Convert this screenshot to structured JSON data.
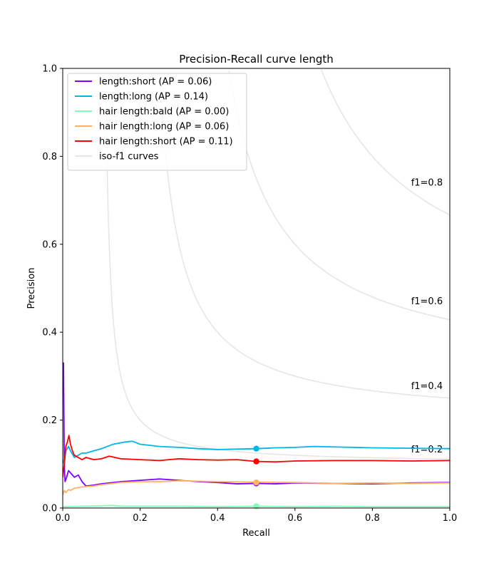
{
  "chart_data": {
    "type": "line",
    "title": "Precision-Recall curve length",
    "xlabel": "Recall",
    "ylabel": "Precision",
    "xlim": [
      0.0,
      1.0
    ],
    "ylim": [
      0.0,
      1.0
    ],
    "xticks": [
      "0.0",
      "0.2",
      "0.4",
      "0.6",
      "0.8",
      "1.0"
    ],
    "yticks": [
      "0.0",
      "0.2",
      "0.4",
      "0.6",
      "0.8",
      "1.0"
    ],
    "grid": false,
    "legend_position": "upper left",
    "legend": [
      "length:short (AP = 0.06)",
      "length:long (AP = 0.14)",
      "hair length:bald (AP = 0.00)",
      "hair length:long (AP = 0.06)",
      "hair length:short (AP = 0.11)",
      "iso-f1 curves"
    ],
    "iso_f1": [
      {
        "f1": 0.2,
        "label": "f1=0.2"
      },
      {
        "f1": 0.4,
        "label": "f1=0.4"
      },
      {
        "f1": 0.6,
        "label": "f1=0.6"
      },
      {
        "f1": 0.8,
        "label": "f1=0.8"
      }
    ],
    "iso_f1_color": "#e6e6e6",
    "series": [
      {
        "name": "length:short (AP = 0.06)",
        "color": "#8000ff",
        "marker": [
          0.5,
          0.056
        ],
        "x": [
          0.0,
          0.002,
          0.004,
          0.006,
          0.01,
          0.015,
          0.02,
          0.03,
          0.04,
          0.05,
          0.06,
          0.08,
          0.1,
          0.15,
          0.2,
          0.25,
          0.3,
          0.35,
          0.4,
          0.45,
          0.5,
          0.55,
          0.6,
          0.7,
          0.8,
          0.9,
          1.0
        ],
        "y": [
          0.33,
          0.33,
          0.1,
          0.06,
          0.07,
          0.085,
          0.08,
          0.07,
          0.075,
          0.06,
          0.05,
          0.052,
          0.055,
          0.06,
          0.063,
          0.066,
          0.063,
          0.06,
          0.058,
          0.055,
          0.056,
          0.055,
          0.057,
          0.056,
          0.055,
          0.057,
          0.058
        ]
      },
      {
        "name": "length:long (AP = 0.14)",
        "color": "#00b5eb",
        "marker": [
          0.5,
          0.135
        ],
        "x": [
          0.0,
          0.004,
          0.008,
          0.015,
          0.02,
          0.03,
          0.04,
          0.05,
          0.06,
          0.08,
          0.1,
          0.13,
          0.16,
          0.18,
          0.2,
          0.25,
          0.3,
          0.35,
          0.4,
          0.45,
          0.5,
          0.55,
          0.6,
          0.65,
          0.7,
          0.8,
          0.9,
          1.0
        ],
        "y": [
          0.11,
          0.1,
          0.13,
          0.14,
          0.13,
          0.115,
          0.12,
          0.125,
          0.125,
          0.13,
          0.135,
          0.145,
          0.15,
          0.152,
          0.145,
          0.14,
          0.138,
          0.135,
          0.133,
          0.134,
          0.135,
          0.137,
          0.138,
          0.14,
          0.139,
          0.137,
          0.136,
          0.135
        ]
      },
      {
        "name": "hair length:bald (AP = 0.00)",
        "color": "#80ffb4",
        "marker": [
          0.5,
          0.004
        ],
        "x": [
          0.0,
          0.05,
          0.1,
          0.13,
          0.15,
          0.2,
          0.3,
          0.4,
          0.5,
          0.6,
          0.7,
          0.8,
          0.9,
          1.0
        ],
        "y": [
          0.003,
          0.004,
          0.005,
          0.006,
          0.004,
          0.004,
          0.004,
          0.003,
          0.004,
          0.003,
          0.004,
          0.003,
          0.003,
          0.003
        ]
      },
      {
        "name": "hair length:long (AP = 0.06)",
        "color": "#ffb360",
        "marker": [
          0.5,
          0.058
        ],
        "x": [
          0.0,
          0.004,
          0.008,
          0.015,
          0.02,
          0.03,
          0.05,
          0.08,
          0.1,
          0.15,
          0.2,
          0.25,
          0.3,
          0.4,
          0.5,
          0.6,
          0.7,
          0.8,
          0.9,
          1.0
        ],
        "y": [
          0.03,
          0.04,
          0.035,
          0.042,
          0.04,
          0.045,
          0.048,
          0.05,
          0.053,
          0.058,
          0.06,
          0.06,
          0.062,
          0.06,
          0.059,
          0.058,
          0.056,
          0.057,
          0.056,
          0.057
        ]
      },
      {
        "name": "hair length:short (AP = 0.11)",
        "color": "#ff0000",
        "marker": [
          0.5,
          0.106
        ],
        "x": [
          0.0,
          0.004,
          0.008,
          0.012,
          0.016,
          0.02,
          0.025,
          0.03,
          0.04,
          0.05,
          0.06,
          0.08,
          0.1,
          0.12,
          0.15,
          0.2,
          0.25,
          0.3,
          0.35,
          0.4,
          0.45,
          0.5,
          0.55,
          0.6,
          0.7,
          0.8,
          0.9,
          1.0
        ],
        "y": [
          0.07,
          0.1,
          0.14,
          0.15,
          0.165,
          0.145,
          0.13,
          0.12,
          0.115,
          0.11,
          0.115,
          0.11,
          0.112,
          0.118,
          0.112,
          0.11,
          0.108,
          0.112,
          0.11,
          0.109,
          0.11,
          0.106,
          0.105,
          0.107,
          0.108,
          0.108,
          0.107,
          0.108
        ]
      }
    ]
  }
}
